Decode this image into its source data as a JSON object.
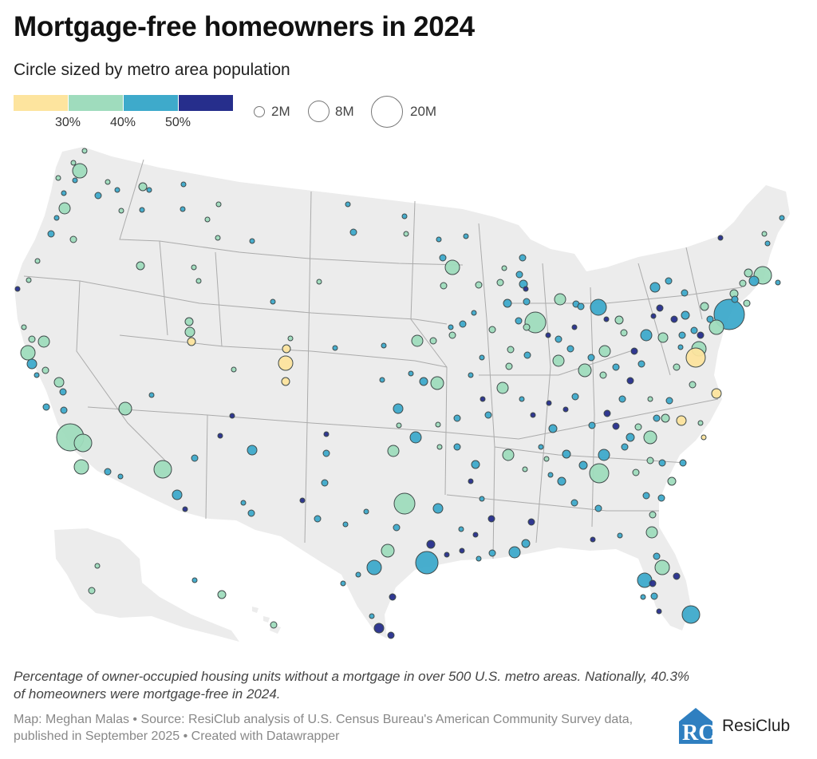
{
  "header": {
    "title": "Mortgage-free homeowners in 2024",
    "subtitle": "Circle sized by metro area population"
  },
  "legend": {
    "color_bins": [
      "#fde49e",
      "#9fdcbd",
      "#3eaacb",
      "#262e8c"
    ],
    "ticks": [
      "30%",
      "40%",
      "50%"
    ],
    "sizes": [
      {
        "label": "2M",
        "population_millions": 2
      },
      {
        "label": "8M",
        "population_millions": 8
      },
      {
        "label": "20M",
        "population_millions": 20
      }
    ]
  },
  "colors": {
    "land": "#ececec",
    "state_border": "#ababab",
    "circle_stroke": "#3f4a4a"
  },
  "notes": "Percentage of owner-occupied housing units without a mortgage in over 500 U.S. metro areas. Nationally, 40.3% of homeowners were mortgage-free in 2024.",
  "source": "Map: Meghan Malas • Source: ResiClub analysis of U.S. Census Bureau's American Community Survey data, published in September 2025 • Created with Datawrapper",
  "logo": {
    "text": "ResiClub",
    "mark": "RC"
  }
}
